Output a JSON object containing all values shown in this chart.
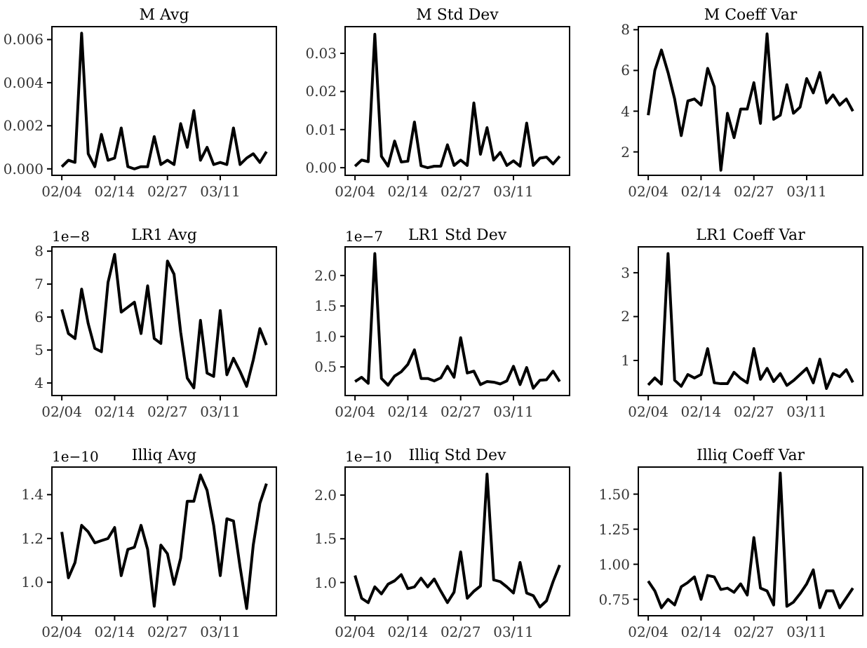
{
  "chart_data": [
    {
      "type": "line",
      "title": "M Avg",
      "categories": [
        "02/04",
        null,
        null,
        null,
        null,
        null,
        null,
        null,
        "02/14",
        null,
        null,
        null,
        null,
        null,
        null,
        null,
        "02/27",
        null,
        null,
        null,
        null,
        null,
        null,
        null,
        "03/11",
        null,
        null,
        null,
        null,
        null,
        null,
        null
      ],
      "color": "#000000",
      "values": [
        0.0001,
        0.0004,
        0.0003,
        0.0063,
        0.0007,
        0.0001,
        0.0016,
        0.0004,
        0.0005,
        0.0019,
        0.0001,
        0.0,
        0.0001,
        0.0001,
        0.0015,
        0.0002,
        0.0004,
        0.0002,
        0.0021,
        0.001,
        0.0027,
        0.0004,
        0.001,
        0.0002,
        0.0003,
        0.0002,
        0.0019,
        0.0002,
        0.0005,
        0.0007,
        0.0003,
        0.0008
      ],
      "ylim": [
        -0.0003,
        0.0066
      ],
      "yticks": [
        {
          "value": 0,
          "label": "0.000"
        },
        {
          "value": 0.002,
          "label": "0.002"
        },
        {
          "value": 0.004,
          "label": "0.004"
        },
        {
          "value": 0.006,
          "label": "0.006"
        }
      ]
    },
    {
      "type": "line",
      "title": "M Std Dev",
      "categories": [
        "02/04",
        null,
        null,
        null,
        null,
        null,
        null,
        null,
        "02/14",
        null,
        null,
        null,
        null,
        null,
        null,
        null,
        "02/27",
        null,
        null,
        null,
        null,
        null,
        null,
        null,
        "03/11",
        null,
        null,
        null,
        null,
        null,
        null,
        null
      ],
      "color": "#000000",
      "values": [
        0.0004,
        0.002,
        0.0016,
        0.035,
        0.003,
        0.0004,
        0.007,
        0.0015,
        0.0017,
        0.012,
        0.0005,
        0.0,
        0.0004,
        0.0004,
        0.006,
        0.0006,
        0.002,
        0.0006,
        0.017,
        0.0035,
        0.0105,
        0.002,
        0.004,
        0.0006,
        0.0018,
        0.0004,
        0.0117,
        0.0006,
        0.0025,
        0.0028,
        0.001,
        0.003
      ],
      "ylim": [
        -0.002,
        0.037
      ],
      "yticks": [
        {
          "value": 0,
          "label": "0.00"
        },
        {
          "value": 0.01,
          "label": "0.01"
        },
        {
          "value": 0.02,
          "label": "0.02"
        },
        {
          "value": 0.03,
          "label": "0.03"
        }
      ]
    },
    {
      "type": "line",
      "title": "M Coeff Var",
      "categories": [
        "02/04",
        null,
        null,
        null,
        null,
        null,
        null,
        null,
        "02/14",
        null,
        null,
        null,
        null,
        null,
        null,
        null,
        "02/27",
        null,
        null,
        null,
        null,
        null,
        null,
        null,
        "03/11",
        null,
        null,
        null,
        null,
        null,
        null,
        null
      ],
      "color": "#000000",
      "values": [
        3.8,
        6.0,
        7.0,
        5.9,
        4.6,
        2.8,
        4.5,
        4.6,
        4.3,
        6.1,
        5.2,
        1.1,
        3.9,
        2.7,
        4.1,
        4.1,
        5.4,
        3.4,
        7.8,
        3.6,
        3.8,
        5.3,
        3.9,
        4.2,
        5.6,
        4.9,
        5.9,
        4.4,
        4.8,
        4.3,
        4.6,
        4.0
      ],
      "ylim": [
        0.85,
        8.15
      ],
      "yticks": [
        2,
        4,
        6,
        8
      ]
    },
    {
      "type": "line",
      "title": "LR1 Avg",
      "annotations": [
        "1e−8"
      ],
      "categories": [
        "02/04",
        null,
        null,
        null,
        null,
        null,
        null,
        null,
        "02/14",
        null,
        null,
        null,
        null,
        null,
        null,
        null,
        "02/27",
        null,
        null,
        null,
        null,
        null,
        null,
        null,
        "03/11",
        null,
        null,
        null,
        null,
        null,
        null,
        null
      ],
      "color": "#000000",
      "values": [
        6.23,
        5.5,
        5.35,
        6.85,
        5.8,
        5.05,
        4.95,
        7.05,
        7.9,
        6.15,
        6.3,
        6.45,
        5.5,
        6.95,
        5.35,
        5.2,
        7.7,
        7.3,
        5.55,
        4.15,
        3.85,
        5.9,
        4.3,
        4.2,
        6.2,
        4.25,
        4.75,
        4.35,
        3.9,
        4.7,
        5.65,
        5.15
      ],
      "ylim": [
        3.62,
        8.13
      ],
      "yticks": [
        4,
        5,
        6,
        7,
        8
      ]
    },
    {
      "type": "line",
      "title": "LR1 Std Dev",
      "annotations": [
        "1e−7"
      ],
      "categories": [
        "02/04",
        null,
        null,
        null,
        null,
        null,
        null,
        null,
        "02/14",
        null,
        null,
        null,
        null,
        null,
        null,
        null,
        "02/27",
        null,
        null,
        null,
        null,
        null,
        null,
        null,
        "03/11",
        null,
        null,
        null,
        null,
        null,
        null,
        null
      ],
      "color": "#000000",
      "values": [
        0.26,
        0.33,
        0.23,
        2.36,
        0.31,
        0.2,
        0.35,
        0.42,
        0.54,
        0.78,
        0.31,
        0.31,
        0.27,
        0.32,
        0.51,
        0.33,
        0.98,
        0.4,
        0.43,
        0.21,
        0.26,
        0.25,
        0.22,
        0.27,
        0.51,
        0.21,
        0.49,
        0.15,
        0.28,
        0.29,
        0.43,
        0.26
      ],
      "ylim": [
        0.03,
        2.47
      ],
      "yticks": [
        {
          "value": 0.5,
          "label": "0.5"
        },
        {
          "value": 1,
          "label": "1.0"
        },
        {
          "value": 1.5,
          "label": "1.5"
        },
        {
          "value": 2,
          "label": "2.0"
        }
      ]
    },
    {
      "type": "line",
      "title": "LR1 Coeff Var",
      "categories": [
        "02/04",
        null,
        null,
        null,
        null,
        null,
        null,
        null,
        "02/14",
        null,
        null,
        null,
        null,
        null,
        null,
        null,
        "02/27",
        null,
        null,
        null,
        null,
        null,
        null,
        null,
        "03/11",
        null,
        null,
        null,
        null,
        null,
        null,
        null
      ],
      "color": "#000000",
      "values": [
        0.44,
        0.6,
        0.46,
        3.44,
        0.55,
        0.41,
        0.68,
        0.6,
        0.68,
        1.27,
        0.49,
        0.47,
        0.47,
        0.73,
        0.59,
        0.49,
        1.27,
        0.57,
        0.82,
        0.52,
        0.7,
        0.43,
        0.54,
        0.68,
        0.82,
        0.49,
        1.03,
        0.36,
        0.7,
        0.63,
        0.79,
        0.5
      ],
      "ylim": [
        0.2,
        3.59
      ],
      "yticks": [
        1,
        2,
        3
      ]
    },
    {
      "type": "line",
      "title": "Illiq Avg",
      "annotations": [
        "1e−10"
      ],
      "categories": [
        "02/04",
        null,
        null,
        null,
        null,
        null,
        null,
        null,
        "02/14",
        null,
        null,
        null,
        null,
        null,
        null,
        null,
        "02/27",
        null,
        null,
        null,
        null,
        null,
        null,
        null,
        "03/11",
        null,
        null,
        null,
        null,
        null,
        null,
        null
      ],
      "color": "#000000",
      "values": [
        1.23,
        1.02,
        1.09,
        1.26,
        1.23,
        1.18,
        1.19,
        1.2,
        1.25,
        1.03,
        1.15,
        1.16,
        1.26,
        1.15,
        0.89,
        1.17,
        1.13,
        0.99,
        1.11,
        1.37,
        1.37,
        1.49,
        1.42,
        1.26,
        1.03,
        1.29,
        1.28,
        1.07,
        0.88,
        1.17,
        1.36,
        1.45
      ],
      "ylim": [
        0.847,
        1.526
      ],
      "yticks": [
        {
          "value": 1,
          "label": "1.0"
        },
        {
          "value": 1.2,
          "label": "1.2"
        },
        {
          "value": 1.4,
          "label": "1.4"
        }
      ]
    },
    {
      "type": "line",
      "title": "Illiq Std Dev",
      "annotations": [
        "1e−10"
      ],
      "categories": [
        "02/04",
        null,
        null,
        null,
        null,
        null,
        null,
        null,
        "02/14",
        null,
        null,
        null,
        null,
        null,
        null,
        null,
        "02/27",
        null,
        null,
        null,
        null,
        null,
        null,
        null,
        "03/11",
        null,
        null,
        null,
        null,
        null,
        null,
        null
      ],
      "color": "#000000",
      "values": [
        1.08,
        0.82,
        0.77,
        0.95,
        0.87,
        0.98,
        1.02,
        1.09,
        0.93,
        0.95,
        1.05,
        0.95,
        1.04,
        0.9,
        0.77,
        0.89,
        1.35,
        0.82,
        0.9,
        0.96,
        2.24,
        1.03,
        1.01,
        0.95,
        0.88,
        1.23,
        0.88,
        0.85,
        0.72,
        0.79,
        1.01,
        1.2
      ],
      "ylim": [
        0.62,
        2.32
      ],
      "yticks": [
        {
          "value": 1,
          "label": "1.0"
        },
        {
          "value": 1.5,
          "label": "1.5"
        },
        {
          "value": 2,
          "label": "2.0"
        }
      ]
    },
    {
      "type": "line",
      "title": "Illiq Coeff Var",
      "categories": [
        "02/04",
        null,
        null,
        null,
        null,
        null,
        null,
        null,
        "02/14",
        null,
        null,
        null,
        null,
        null,
        null,
        null,
        "02/27",
        null,
        null,
        null,
        null,
        null,
        null,
        null,
        "03/11",
        null,
        null,
        null,
        null,
        null,
        null,
        null
      ],
      "color": "#000000",
      "values": [
        0.88,
        0.81,
        0.69,
        0.75,
        0.71,
        0.84,
        0.87,
        0.91,
        0.75,
        0.92,
        0.91,
        0.82,
        0.83,
        0.8,
        0.86,
        0.78,
        1.19,
        0.83,
        0.81,
        0.71,
        1.65,
        0.7,
        0.73,
        0.79,
        0.86,
        0.96,
        0.69,
        0.81,
        0.81,
        0.69,
        0.76,
        0.83
      ],
      "ylim": [
        0.633,
        1.693
      ],
      "yticks": [
        {
          "value": 0.75,
          "label": "0.75"
        },
        {
          "value": 1,
          "label": "1.00"
        },
        {
          "value": 1.25,
          "label": "1.25"
        },
        {
          "value": 1.5,
          "label": "1.50"
        }
      ]
    }
  ]
}
